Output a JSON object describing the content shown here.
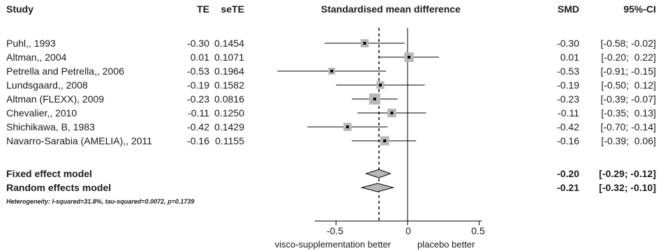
{
  "headers": {
    "study": "Study",
    "te": "TE",
    "sete": "seTE",
    "plot": "Standardised mean difference",
    "smd": "SMD",
    "ci": "95%-CI"
  },
  "studies": [
    {
      "name": "Puhl,, 1993",
      "te": "-0.30",
      "sete": "0.1454",
      "smd": "-0.30",
      "ci": "[-0.58; -0.02]"
    },
    {
      "name": "Altman,, 2004",
      "te": "0.01",
      "sete": "0.1071",
      "smd": "0.01",
      "ci": "[-0.20;  0.22]"
    },
    {
      "name": "Petrella and Petrella,, 2006",
      "te": "-0.53",
      "sete": "0.1964",
      "smd": "-0.53",
      "ci": "[-0.91; -0.15]"
    },
    {
      "name": "Lundsgaard,, 2008",
      "te": "-0.19",
      "sete": "0.1582",
      "smd": "-0.19",
      "ci": "[-0.50;  0.12]"
    },
    {
      "name": "Altman (FLEXX), 2009",
      "te": "-0.23",
      "sete": "0.0816",
      "smd": "-0.23",
      "ci": "[-0.39; -0.07]"
    },
    {
      "name": "Chevalier,, 2010",
      "te": "-0.11",
      "sete": "0.1250",
      "smd": "-0.11",
      "ci": "[-0.35;  0.13]"
    },
    {
      "name": "Shichikawa,  B, 1983",
      "te": "-0.42",
      "sete": "0.1429",
      "smd": "-0.42",
      "ci": "[-0.70; -0.14]"
    },
    {
      "name": "Navarro-Sarabia (AMELIA),, 2011",
      "te": "-0.16",
      "sete": "0.1155",
      "smd": "-0.16",
      "ci": "[-0.39;  0.06]"
    }
  ],
  "models": [
    {
      "name": "Fixed effect model",
      "smd": "-0.20",
      "ci": "[-0.29; -0.12]"
    },
    {
      "name": "Random effects model",
      "smd": "-0.21",
      "ci": "[-0.32; -0.10]"
    }
  ],
  "heterogeneity": "Heterogeneity: I-squared=31.8%, tau-squared=0.0072, p=0.1739",
  "axis": {
    "ticks": [
      "-0.5",
      "0",
      "0.5"
    ],
    "left_label": "visco-supplementation better",
    "right_label": "placebo better"
  },
  "chart_data": {
    "type": "forest",
    "xlim": [
      -0.6,
      0.5
    ],
    "ticks": [
      -0.5,
      0,
      0.5
    ],
    "null_line": 0,
    "points": [
      {
        "est": -0.3,
        "lo": -0.58,
        "hi": -0.02,
        "weight": 0.1
      },
      {
        "est": 0.01,
        "lo": -0.2,
        "hi": 0.22,
        "weight": 0.18
      },
      {
        "est": -0.53,
        "lo": -0.91,
        "hi": -0.15,
        "weight": 0.05
      },
      {
        "est": -0.19,
        "lo": -0.5,
        "hi": 0.12,
        "weight": 0.08
      },
      {
        "est": -0.23,
        "lo": -0.39,
        "hi": -0.07,
        "weight": 0.3
      },
      {
        "est": -0.11,
        "lo": -0.35,
        "hi": 0.13,
        "weight": 0.13
      },
      {
        "est": -0.42,
        "lo": -0.7,
        "hi": -0.14,
        "weight": 0.1
      },
      {
        "est": -0.16,
        "lo": -0.39,
        "hi": 0.06,
        "weight": 0.15
      }
    ],
    "diamonds": [
      {
        "est": -0.2,
        "lo": -0.29,
        "hi": -0.12
      },
      {
        "est": -0.21,
        "lo": -0.32,
        "hi": -0.1
      }
    ],
    "pooled_line": -0.2
  }
}
